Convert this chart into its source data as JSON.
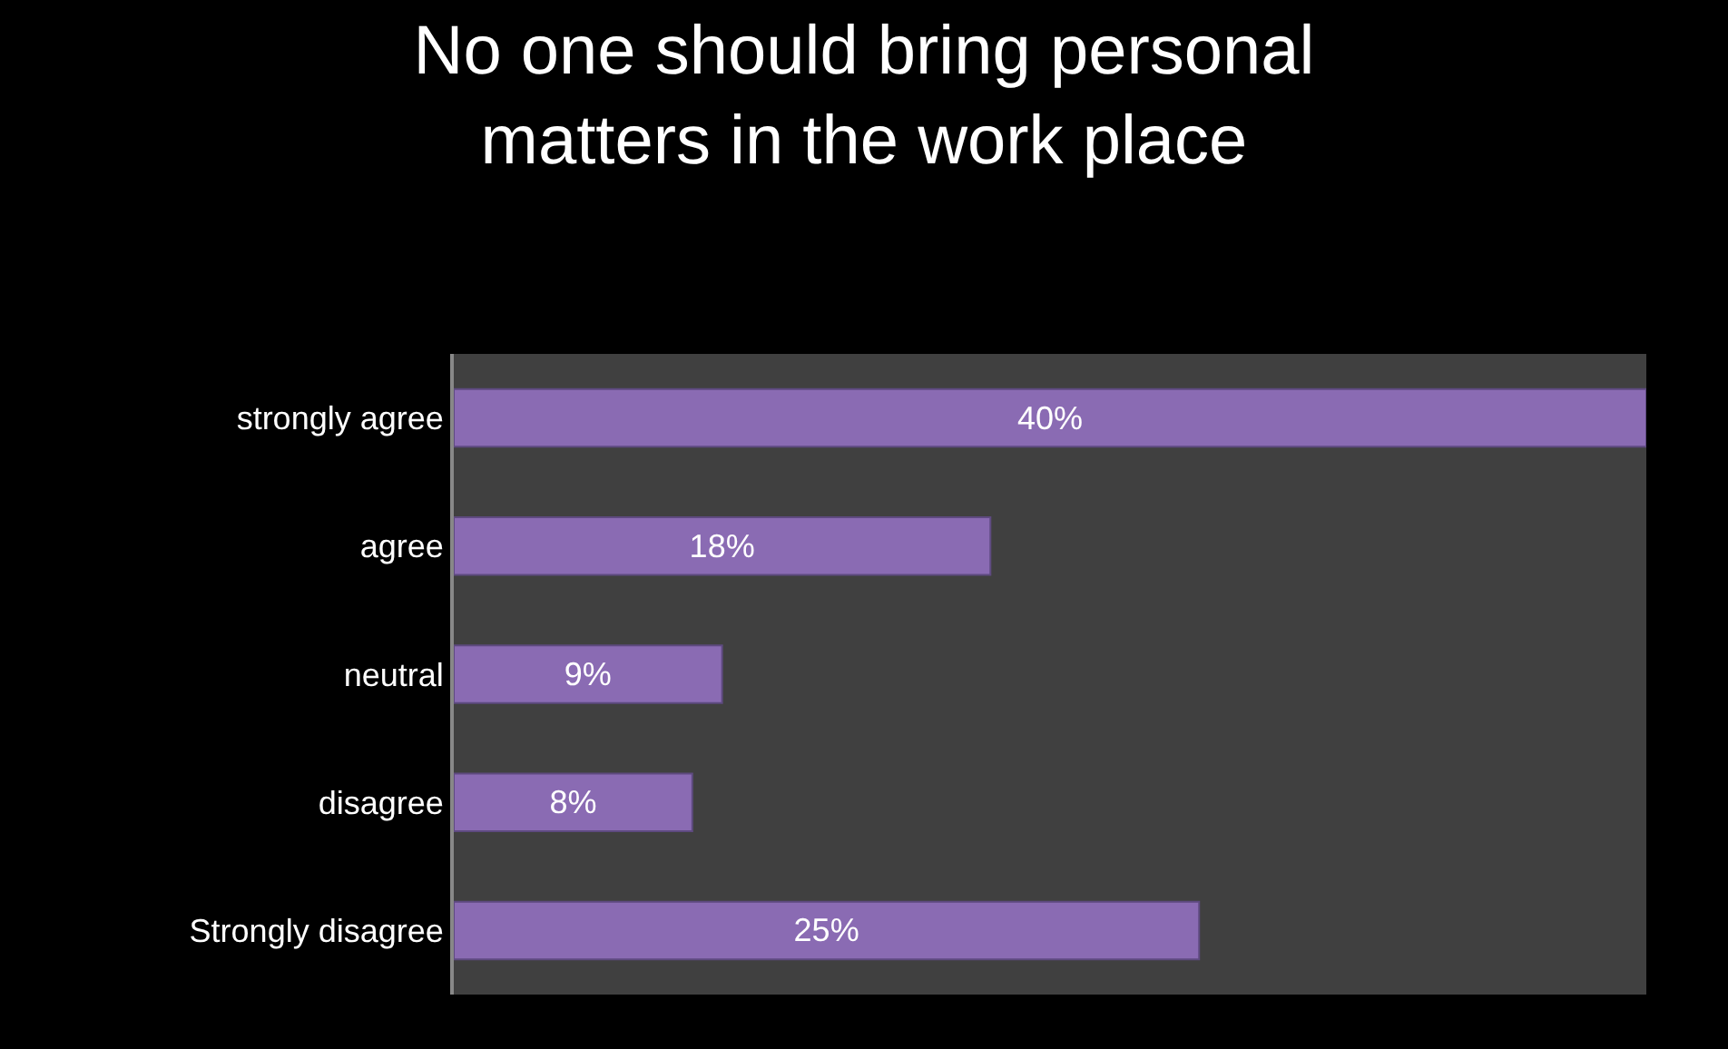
{
  "chart_data": {
    "type": "bar",
    "orientation": "horizontal",
    "title": "No one should bring personal matters in the work place",
    "categories": [
      "strongly agree",
      "agree",
      "neutral",
      "disagree",
      "Strongly disagree"
    ],
    "values": [
      40,
      18,
      9,
      8,
      25
    ],
    "value_labels": [
      "40%",
      "18%",
      "9%",
      "8%",
      "25%"
    ],
    "color": "#8a6bb3",
    "xlim": [
      0,
      40
    ],
    "grid": false,
    "legend": false
  }
}
